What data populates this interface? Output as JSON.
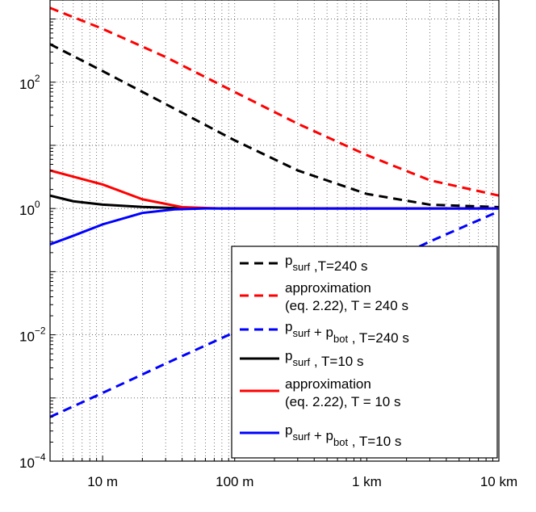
{
  "chart_data": {
    "type": "line",
    "title": "",
    "xlabel": "",
    "ylabel": "",
    "x_scale": "log",
    "y_scale": "log",
    "xlim_m": [
      4,
      10000
    ],
    "ylim": [
      0.0001,
      2000
    ],
    "x_ticks": [
      {
        "value_m": 10,
        "label": "10 m"
      },
      {
        "value_m": 100,
        "label": "100 m"
      },
      {
        "value_m": 1000,
        "label": "1 km"
      },
      {
        "value_m": 10000,
        "label": "10 km"
      }
    ],
    "y_ticks": [
      {
        "value": 0.0001,
        "base": "10",
        "exp": "−4"
      },
      {
        "value": 0.01,
        "base": "10",
        "exp": "−2"
      },
      {
        "value": 1,
        "base": "10",
        "exp": "0"
      },
      {
        "value": 100,
        "base": "10",
        "exp": "2"
      }
    ],
    "grid": "dotted",
    "legend_position": "bottom-right",
    "series": [
      {
        "id": "psurf_240",
        "color": "#000000",
        "dash": true,
        "legend": [
          {
            "t": "p"
          },
          {
            "t": "surf",
            "sub": true
          },
          {
            "t": " ,T=240 s"
          }
        ],
        "points": [
          [
            4,
            400
          ],
          [
            10,
            150
          ],
          [
            30,
            45
          ],
          [
            100,
            12
          ],
          [
            300,
            4
          ],
          [
            1000,
            1.7
          ],
          [
            3000,
            1.15
          ],
          [
            10000,
            1.05
          ]
        ]
      },
      {
        "id": "approx_240",
        "color": "#ff0000",
        "dash": true,
        "legend_line1": "approximation",
        "legend_line2": "(eq. 2.22), T = 240 s",
        "points": [
          [
            4,
            1500
          ],
          [
            10,
            700
          ],
          [
            30,
            250
          ],
          [
            100,
            70
          ],
          [
            300,
            22
          ],
          [
            1000,
            7
          ],
          [
            3000,
            2.8
          ],
          [
            10000,
            1.6
          ]
        ]
      },
      {
        "id": "psum_240",
        "color": "#0000ff",
        "dash": true,
        "legend": [
          {
            "t": "p"
          },
          {
            "t": "surf",
            "sub": true
          },
          {
            "t": " + p"
          },
          {
            "t": "bot",
            "sub": true
          },
          {
            "t": " , T=240 s"
          }
        ],
        "points": [
          [
            4,
            0.0005
          ],
          [
            10,
            0.0012
          ],
          [
            30,
            0.0035
          ],
          [
            100,
            0.011
          ],
          [
            300,
            0.035
          ],
          [
            1000,
            0.1
          ],
          [
            3000,
            0.3
          ],
          [
            10000,
            0.9
          ]
        ]
      },
      {
        "id": "psurf_10",
        "color": "#000000",
        "dash": false,
        "legend": [
          {
            "t": "p"
          },
          {
            "t": "surf",
            "sub": true
          },
          {
            "t": " , T=10 s"
          }
        ],
        "points": [
          [
            4,
            1.6
          ],
          [
            6,
            1.3
          ],
          [
            10,
            1.15
          ],
          [
            20,
            1.06
          ],
          [
            40,
            1.01
          ],
          [
            80,
            1.0
          ],
          [
            10000,
            1.0
          ]
        ]
      },
      {
        "id": "approx_10",
        "color": "#ff0000",
        "dash": false,
        "legend_line1": "approximation",
        "legend_line2": "(eq. 2.22), T = 10 s",
        "points": [
          [
            4,
            4.0
          ],
          [
            10,
            2.4
          ],
          [
            20,
            1.4
          ],
          [
            40,
            1.05
          ],
          [
            80,
            1.0
          ],
          [
            10000,
            1.0
          ]
        ]
      },
      {
        "id": "psum_10",
        "color": "#0000ff",
        "dash": false,
        "legend": [
          {
            "t": "p"
          },
          {
            "t": "surf",
            "sub": true
          },
          {
            "t": " + p"
          },
          {
            "t": "bot",
            "sub": true
          },
          {
            "t": " , T=10 s"
          }
        ],
        "points": [
          [
            4,
            0.27
          ],
          [
            6,
            0.37
          ],
          [
            10,
            0.56
          ],
          [
            20,
            0.85
          ],
          [
            35,
            0.97
          ],
          [
            60,
            1.0
          ],
          [
            10000,
            1.0
          ]
        ]
      }
    ]
  }
}
